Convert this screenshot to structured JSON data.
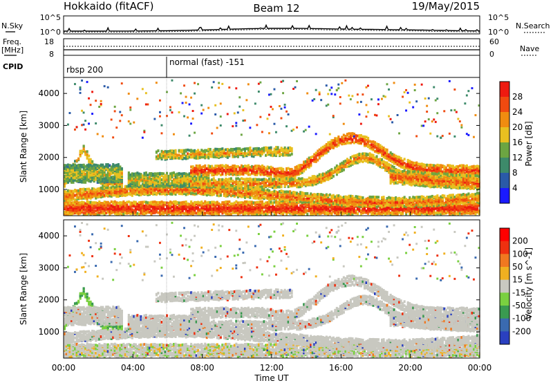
{
  "header": {
    "station": "Hokkaido (fitACF)",
    "beam": "Beam 12",
    "date": "19/May/2015"
  },
  "side_labels": {
    "nsky": "N.Sky",
    "freq": "Freq.",
    "freq_unit": "[MHz]",
    "cpid": "CPID",
    "nsearch": "N.Search",
    "nave": "Nave"
  },
  "mini_ticks": {
    "noise_left_top": "10^5",
    "noise_left_bottom": "10^0",
    "noise_right_top": "10^5",
    "noise_right_bottom": "10^0",
    "freq_left_top": "18",
    "freq_left_bottom": "8",
    "nave_right_top": "60",
    "nave_right_bottom": "0"
  },
  "cpid_segments": [
    "rbsp 200",
    "normal (fast) -151"
  ],
  "chart_data": [
    {
      "type": "heatmap",
      "name": "power",
      "ylabel": "Slant Range [km]",
      "yticks": [
        "1000",
        "2000",
        "3000",
        "4000"
      ],
      "ylim": [
        180,
        4500
      ],
      "colorbar_label": "Power [dB]",
      "colorbar_ticks": [
        "4",
        "8",
        "12",
        "16",
        "20",
        "24",
        "28"
      ],
      "colorbar_colors": [
        "#1a1aff",
        "#2a5aa8",
        "#3d8a6a",
        "#6ca542",
        "#e8c020",
        "#f08c10",
        "#f04a10",
        "#ee1a10"
      ]
    },
    {
      "type": "heatmap",
      "name": "velocity",
      "ylabel": "Slant Range [km]",
      "yticks": [
        "1000",
        "2000",
        "3000",
        "4000"
      ],
      "ylim": [
        180,
        4500
      ],
      "colorbar_label": "Velocity [m s^-1]",
      "colorbar_ticks": [
        "200",
        "100",
        "50",
        "15",
        "-15",
        "-50",
        "-100",
        "-200"
      ],
      "colorbar_colors": [
        "#2a40c0",
        "#3a6ab0",
        "#3a9a50",
        "#7ad040",
        "#c8c8c0",
        "#f0b020",
        "#f07820",
        "#ee3010",
        "#ff0000"
      ]
    }
  ],
  "xaxis": {
    "ticks": [
      "00:00",
      "04:00",
      "08:00",
      "12:00",
      "16:00",
      "20:00",
      "00:00"
    ],
    "label": "Time UT"
  }
}
